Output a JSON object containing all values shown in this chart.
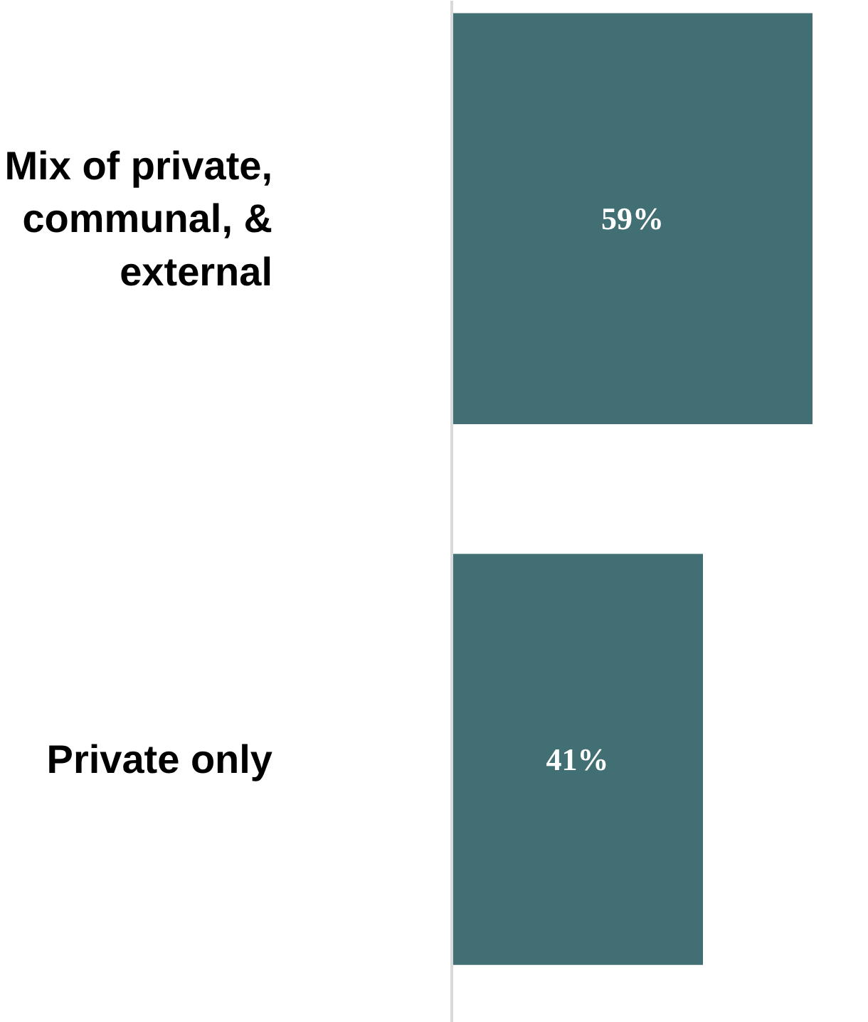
{
  "chart_data": {
    "type": "bar",
    "orientation": "horizontal",
    "categories": [
      "Mix of private, communal, & external",
      "Private only"
    ],
    "values": [
      59,
      41
    ],
    "value_labels": [
      "59%",
      "41%"
    ],
    "color": "#426f73",
    "grid": false
  }
}
